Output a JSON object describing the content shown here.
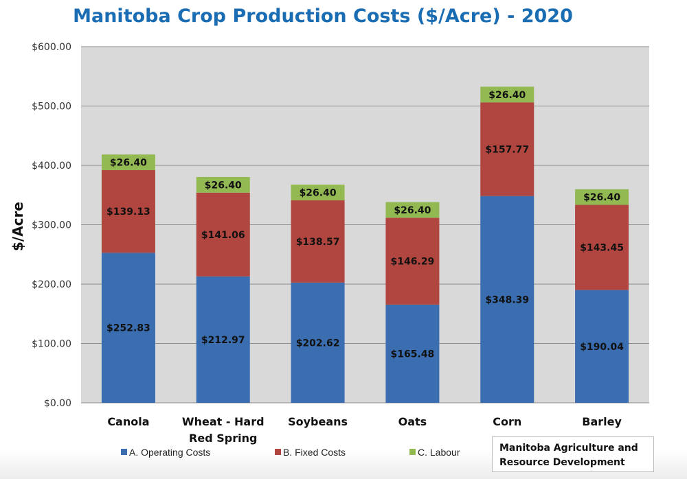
{
  "chart_data": {
    "type": "bar",
    "stacked": true,
    "title": "Manitoba Crop Production Costs ($/Acre) - 2020",
    "xlabel": "",
    "ylabel": "$/Acre",
    "ylim": [
      0,
      600
    ],
    "yticks": [
      0,
      100,
      200,
      300,
      400,
      500,
      600
    ],
    "ytick_labels": [
      "$0.00",
      "$100.00",
      "$200.00",
      "$300.00",
      "$400.00",
      "$500.00",
      "$600.00"
    ],
    "grid": true,
    "legend_position": "bottom",
    "categories": [
      [
        "Canola"
      ],
      [
        "Wheat - Hard",
        "Red Spring"
      ],
      [
        "Soybeans"
      ],
      [
        "Oats"
      ],
      [
        "Corn"
      ],
      [
        "Barley"
      ]
    ],
    "series": [
      {
        "name": "A.  Operating Costs",
        "color": "#3a6eb0",
        "values": [
          252.83,
          212.97,
          202.62,
          165.48,
          348.39,
          190.04
        ],
        "labels": [
          "$252.83",
          "$212.97",
          "$202.62",
          "$165.48",
          "$348.39",
          "$190.04"
        ]
      },
      {
        "name": "B.   Fixed Costs",
        "color": "#b0463f",
        "values": [
          139.13,
          141.06,
          138.57,
          146.29,
          157.77,
          143.45
        ],
        "labels": [
          "$139.13",
          "$141.06",
          "$138.57",
          "$146.29",
          "$157.77",
          "$143.45"
        ]
      },
      {
        "name": "C. Labour",
        "color": "#93b953",
        "values": [
          26.4,
          26.4,
          26.4,
          26.4,
          26.4,
          26.4
        ],
        "labels": [
          "$26.40",
          "$26.40",
          "$26.40",
          "$26.40",
          "$26.40",
          "$26.40"
        ]
      }
    ],
    "colors": {
      "title": "#1b6db3",
      "plot_background": "#d9d9d9",
      "gridline": "#8c8c8c"
    }
  },
  "source_note": [
    "Manitoba Agriculture and",
    "Resource Development"
  ]
}
